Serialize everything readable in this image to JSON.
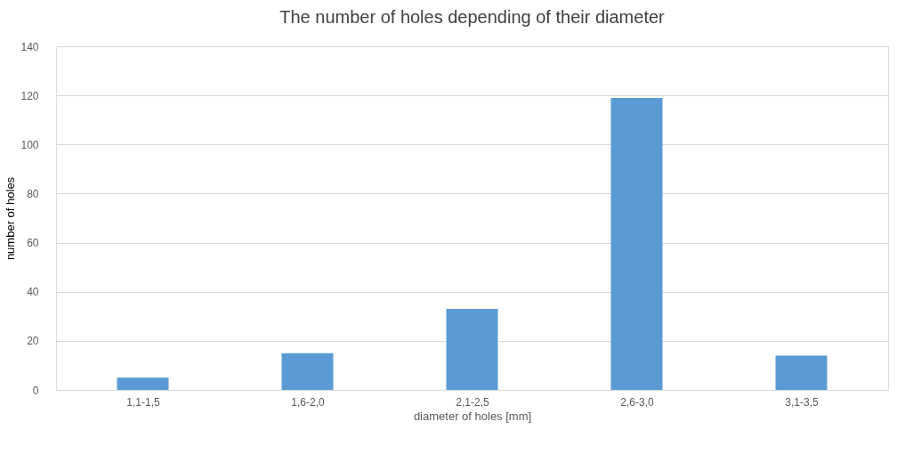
{
  "chart_data": {
    "type": "bar",
    "title": "The number of holes depending of their diameter",
    "xlabel": "diameter of holes [mm]",
    "ylabel": "number of holes",
    "categories": [
      "1,1-1,5",
      "1,6-2,0",
      "2,1-2,5",
      "2,6-3,0",
      "3,1-3,5"
    ],
    "values": [
      5,
      15,
      33,
      119,
      14
    ],
    "color": "#5b9bd5",
    "ylim": [
      0,
      140
    ],
    "yticks": [
      0,
      20,
      40,
      60,
      80,
      100,
      120,
      140
    ],
    "grid": "y"
  }
}
